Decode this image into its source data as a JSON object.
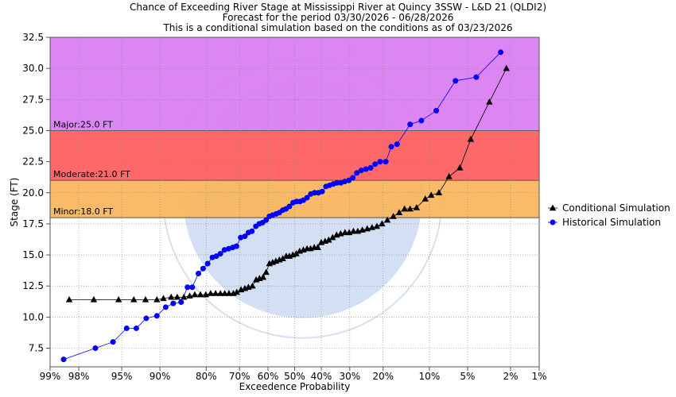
{
  "chart_data": {
    "type": "scatter",
    "title_lines": [
      "Chance of Exceeding River Stage at Mississippi River at Quincy 3SSW - L&D 21 (QLDI2)",
      "Forecast for the period 03/30/2026 - 06/28/2026",
      "This is a conditional simulation based on the conditions as of 03/23/2026"
    ],
    "xlabel": "Exceedence Probability",
    "ylabel": "Stage (FT)",
    "x_scale": "normal-probability",
    "x_ticks": [
      99,
      98,
      95,
      90,
      80,
      70,
      60,
      50,
      40,
      30,
      20,
      10,
      5,
      2,
      1
    ],
    "x_tick_labels": [
      "99%",
      "98%",
      "95%",
      "90%",
      "80%",
      "70%",
      "60%",
      "50%",
      "40%",
      "30%",
      "20%",
      "10%",
      "5%",
      "2%",
      "1%"
    ],
    "ylim": [
      6.0,
      32.5
    ],
    "y_ticks": [
      7.5,
      10.0,
      12.5,
      15.0,
      17.5,
      20.0,
      22.5,
      25.0,
      27.5,
      30.0,
      32.5
    ],
    "y_tick_labels": [
      "7.5",
      "10.0",
      "12.5",
      "15.0",
      "17.5",
      "20.0",
      "22.5",
      "25.0",
      "27.5",
      "30.0",
      "32.5"
    ],
    "grid": true,
    "legend_position": "right",
    "flood_bands": [
      {
        "label": "Minor:18.0 FT",
        "from": 18.0,
        "to": 21.0,
        "color": "#f9b55b"
      },
      {
        "label": "Moderate:21.0 FT",
        "from": 21.0,
        "to": 25.0,
        "color": "#ff5c5c"
      },
      {
        "label": "Major:25.0 FT",
        "from": 25.0,
        "to": 32.5,
        "color": "#d97cf2"
      }
    ],
    "series": [
      {
        "name": "Conditional Simulation",
        "color": "#000000",
        "marker": "triangle",
        "points": [
          [
            98.4,
            11.4
          ],
          [
            97.2,
            11.4
          ],
          [
            95.3,
            11.4
          ],
          [
            93.7,
            11.4
          ],
          [
            92.2,
            11.4
          ],
          [
            90.5,
            11.4
          ],
          [
            89.4,
            11.5
          ],
          [
            88.0,
            11.6
          ],
          [
            86.8,
            11.6
          ],
          [
            85.4,
            11.6
          ],
          [
            84.1,
            11.7
          ],
          [
            82.9,
            11.8
          ],
          [
            81.5,
            11.8
          ],
          [
            80.1,
            11.8
          ],
          [
            78.8,
            11.9
          ],
          [
            77.4,
            11.9
          ],
          [
            76.0,
            11.9
          ],
          [
            74.7,
            11.9
          ],
          [
            73.4,
            11.9
          ],
          [
            72.0,
            11.9
          ],
          [
            70.9,
            12.0
          ],
          [
            69.5,
            12.2
          ],
          [
            68.2,
            12.3
          ],
          [
            67.0,
            12.4
          ],
          [
            65.6,
            12.5
          ],
          [
            64.3,
            13.0
          ],
          [
            63.1,
            13.1
          ],
          [
            61.8,
            13.2
          ],
          [
            60.7,
            13.6
          ],
          [
            59.5,
            14.3
          ],
          [
            58.3,
            14.4
          ],
          [
            57.1,
            14.5
          ],
          [
            55.8,
            14.6
          ],
          [
            54.5,
            14.7
          ],
          [
            53.2,
            14.9
          ],
          [
            52.0,
            14.9
          ],
          [
            50.7,
            15.0
          ],
          [
            49.4,
            15.1
          ],
          [
            48.1,
            15.3
          ],
          [
            46.7,
            15.4
          ],
          [
            45.3,
            15.5
          ],
          [
            44.0,
            15.5
          ],
          [
            42.6,
            15.6
          ],
          [
            41.3,
            15.6
          ],
          [
            40.0,
            16.0
          ],
          [
            38.6,
            16.1
          ],
          [
            37.3,
            16.2
          ],
          [
            35.9,
            16.4
          ],
          [
            34.5,
            16.6
          ],
          [
            33.1,
            16.7
          ],
          [
            31.6,
            16.8
          ],
          [
            30.2,
            16.8
          ],
          [
            28.8,
            16.9
          ],
          [
            27.4,
            16.9
          ],
          [
            26.0,
            17.0
          ],
          [
            24.5,
            17.1
          ],
          [
            23.1,
            17.2
          ],
          [
            21.7,
            17.3
          ],
          [
            20.3,
            17.5
          ],
          [
            18.9,
            17.8
          ],
          [
            17.4,
            18.1
          ],
          [
            16.0,
            18.4
          ],
          [
            14.8,
            18.7
          ],
          [
            13.6,
            18.7
          ],
          [
            12.3,
            18.8
          ],
          [
            10.7,
            19.5
          ],
          [
            9.7,
            19.8
          ],
          [
            8.5,
            20.0
          ],
          [
            7.1,
            21.3
          ],
          [
            5.8,
            22.0
          ],
          [
            4.7,
            24.3
          ],
          [
            3.2,
            27.3
          ],
          [
            2.2,
            30.0
          ]
        ]
      },
      {
        "name": "Historical Simulation",
        "color": "#0000ff",
        "marker": "circle",
        "points": [
          [
            98.6,
            6.6
          ],
          [
            97.1,
            7.5
          ],
          [
            95.8,
            8.0
          ],
          [
            94.5,
            9.1
          ],
          [
            93.4,
            9.1
          ],
          [
            92.1,
            9.9
          ],
          [
            90.5,
            10.1
          ],
          [
            89.0,
            10.8
          ],
          [
            87.6,
            11.1
          ],
          [
            86.0,
            11.2
          ],
          [
            84.6,
            12.4
          ],
          [
            83.5,
            12.4
          ],
          [
            82.0,
            13.5
          ],
          [
            80.8,
            13.9
          ],
          [
            79.6,
            14.3
          ],
          [
            78.3,
            14.8
          ],
          [
            77.2,
            14.9
          ],
          [
            76.0,
            15.1
          ],
          [
            74.8,
            15.4
          ],
          [
            73.5,
            15.5
          ],
          [
            72.2,
            15.6
          ],
          [
            71.0,
            15.7
          ],
          [
            69.6,
            16.4
          ],
          [
            68.2,
            16.5
          ],
          [
            67.0,
            16.8
          ],
          [
            65.8,
            16.9
          ],
          [
            64.4,
            17.3
          ],
          [
            63.2,
            17.5
          ],
          [
            62.0,
            17.6
          ],
          [
            60.7,
            17.8
          ],
          [
            59.5,
            18.1
          ],
          [
            58.3,
            18.2
          ],
          [
            57.0,
            18.3
          ],
          [
            55.8,
            18.4
          ],
          [
            54.5,
            18.6
          ],
          [
            53.3,
            18.7
          ],
          [
            52.0,
            18.9
          ],
          [
            50.6,
            19.2
          ],
          [
            49.3,
            19.3
          ],
          [
            48.0,
            19.3
          ],
          [
            46.7,
            19.4
          ],
          [
            45.3,
            19.6
          ],
          [
            43.9,
            19.9
          ],
          [
            42.5,
            20.0
          ],
          [
            41.1,
            20.0
          ],
          [
            39.7,
            20.1
          ],
          [
            38.3,
            20.5
          ],
          [
            37.0,
            20.6
          ],
          [
            35.7,
            20.7
          ],
          [
            34.4,
            20.8
          ],
          [
            33.0,
            20.8
          ],
          [
            31.7,
            20.9
          ],
          [
            30.3,
            21.0
          ],
          [
            29.0,
            21.2
          ],
          [
            27.7,
            21.6
          ],
          [
            26.3,
            21.8
          ],
          [
            24.9,
            21.9
          ],
          [
            23.5,
            22.0
          ],
          [
            22.2,
            22.3
          ],
          [
            20.8,
            22.5
          ],
          [
            19.3,
            22.5
          ],
          [
            17.9,
            23.7
          ],
          [
            16.5,
            23.9
          ],
          [
            13.6,
            25.5
          ],
          [
            11.4,
            25.8
          ],
          [
            8.9,
            26.6
          ],
          [
            6.3,
            29.0
          ],
          [
            4.2,
            29.3
          ],
          [
            2.5,
            31.3
          ]
        ]
      }
    ]
  }
}
